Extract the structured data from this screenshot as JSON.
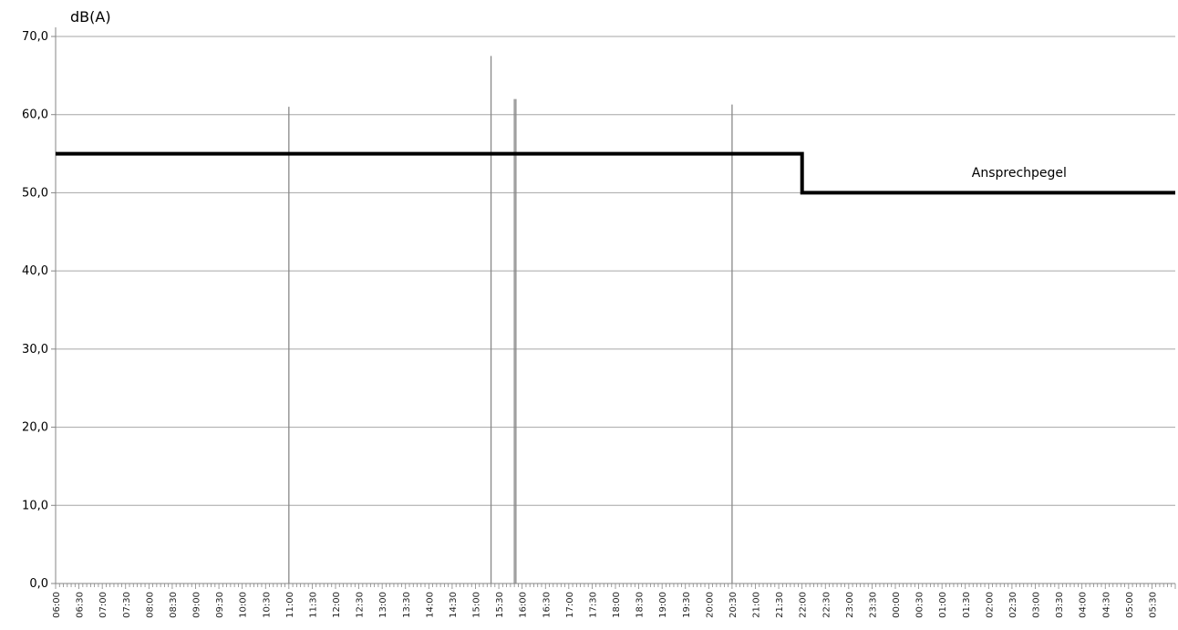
{
  "chart_data": {
    "type": "line",
    "ylabel": "dB(A)",
    "ylim": [
      0,
      70
    ],
    "yticks": [
      "0,0",
      "10,0",
      "20,0",
      "30,0",
      "40,0",
      "50,0",
      "60,0",
      "70,0"
    ],
    "xlim": [
      "06:00",
      "06:00 (+1 day)"
    ],
    "xticks": [
      "06:00",
      "06:30",
      "07:00",
      "07:30",
      "08:00",
      "08:30",
      "09:00",
      "09:30",
      "10:00",
      "10:30",
      "11:00",
      "11:30",
      "12:00",
      "12:30",
      "13:00",
      "13:30",
      "14:00",
      "14:30",
      "15:00",
      "15:30",
      "16:00",
      "16:30",
      "17:00",
      "17:30",
      "18:00",
      "18:30",
      "19:00",
      "19:30",
      "20:00",
      "20:30",
      "21:00",
      "21:30",
      "22:00",
      "22:30",
      "23:00",
      "23:30",
      "00:00",
      "00:30",
      "01:00",
      "01:30",
      "02:00",
      "02:30",
      "03:00",
      "03:30",
      "04:00",
      "04:30",
      "05:00",
      "05:30"
    ],
    "grid": "horizontal",
    "series": [
      {
        "name": "Ansprechpegel",
        "color": "#000000",
        "points": [
          {
            "time": "06:00",
            "value": 55
          },
          {
            "time": "22:00",
            "value": 55
          },
          {
            "time": "22:00",
            "value": 50
          },
          {
            "time": "06:00 (+1 day)",
            "value": 50
          }
        ]
      }
    ],
    "events": [
      {
        "time": "11:00",
        "value": 61,
        "color": "#888888"
      },
      {
        "time": "15:20",
        "value": 67.5,
        "color": "#888888"
      },
      {
        "time": "15:50",
        "value": 62,
        "color": "#888888"
      },
      {
        "time": "15:52",
        "value": 62,
        "color": "#888888"
      },
      {
        "time": "20:30",
        "value": 61.3,
        "color": "#888888"
      }
    ],
    "annotations": [
      {
        "text": "Ansprechpegel",
        "time": "01:30",
        "value": 52.5
      }
    ]
  }
}
